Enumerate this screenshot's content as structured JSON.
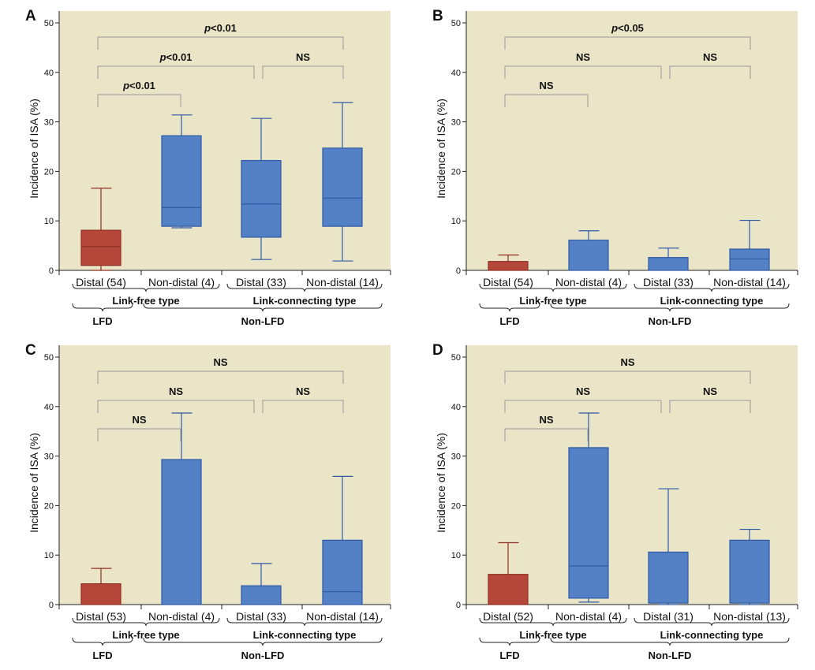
{
  "chart_data": [
    {
      "type": "box",
      "panel": "A",
      "ylabel": "Incidence of ISA (%)",
      "ylim": [
        0,
        50
      ],
      "yticks": [
        0,
        10,
        20,
        30,
        40,
        50
      ],
      "categories": [
        "Distal (54)",
        "Non-distal (4)",
        "Distal (33)",
        "Non-distal (14)"
      ],
      "boxes": [
        {
          "whisker_low": 0,
          "q1": 1.0,
          "median": 4.8,
          "q3": 8.1,
          "whisker_high": 16.6,
          "color": "#b5473a"
        },
        {
          "whisker_low": 8.6,
          "q1": 8.9,
          "median": 12.7,
          "q3": 27.2,
          "whisker_high": 31.4,
          "color": "#5480c6"
        },
        {
          "whisker_low": 2.2,
          "q1": 6.7,
          "median": 13.4,
          "q3": 22.2,
          "whisker_high": 30.7,
          "color": "#5480c6"
        },
        {
          "whisker_low": 1.9,
          "q1": 8.9,
          "median": 14.6,
          "q3": 24.7,
          "whisker_high": 33.9,
          "color": "#5480c6"
        }
      ],
      "group1": {
        "left": "Link-free type",
        "right": "Link-connecting type"
      },
      "group2": {
        "left": "LFD",
        "right": "Non-LFD"
      },
      "comparisons": [
        {
          "from": 0,
          "to": 3,
          "label_prefix": "p",
          "label_rest": "<0.01"
        },
        {
          "from": 0,
          "to": 2,
          "label_prefix": "p",
          "label_rest": "<0.01"
        },
        {
          "from": 2,
          "to": 3,
          "label_prefix": "",
          "label_rest": "NS"
        },
        {
          "from": 0,
          "to": 1,
          "label_prefix": "p",
          "label_rest": "<0.01"
        }
      ]
    },
    {
      "type": "box",
      "panel": "B",
      "ylabel": "Incidence of ISA (%)",
      "ylim": [
        0,
        50
      ],
      "yticks": [
        0,
        10,
        20,
        30,
        40,
        50
      ],
      "categories": [
        "Distal (54)",
        "Non-distal (4)",
        "Distal (33)",
        "Non-distal (14)"
      ],
      "boxes": [
        {
          "whisker_low": 0,
          "q1": 0,
          "median": 0,
          "q3": 1.8,
          "whisker_high": 3.1,
          "color": "#b5473a"
        },
        {
          "whisker_low": 0,
          "q1": 0,
          "median": 0,
          "q3": 6.1,
          "whisker_high": 8.0,
          "color": "#5480c6"
        },
        {
          "whisker_low": 0,
          "q1": 0,
          "median": 0,
          "q3": 2.6,
          "whisker_high": 4.5,
          "color": "#5480c6"
        },
        {
          "whisker_low": 0,
          "q1": 0,
          "median": 2.3,
          "q3": 4.3,
          "whisker_high": 10.1,
          "color": "#5480c6"
        }
      ],
      "group1": {
        "left": "Link-free type",
        "right": "Link-connecting type"
      },
      "group2": {
        "left": "LFD",
        "right": "Non-LFD"
      },
      "comparisons": [
        {
          "from": 0,
          "to": 3,
          "label_prefix": "p",
          "label_rest": "<0.05"
        },
        {
          "from": 0,
          "to": 2,
          "label_prefix": "",
          "label_rest": "NS"
        },
        {
          "from": 2,
          "to": 3,
          "label_prefix": "",
          "label_rest": "NS"
        },
        {
          "from": 0,
          "to": 1,
          "label_prefix": "",
          "label_rest": "NS"
        }
      ]
    },
    {
      "type": "box",
      "panel": "C",
      "ylabel": "Incidence of ISA (%)",
      "ylim": [
        0,
        50
      ],
      "yticks": [
        0,
        10,
        20,
        30,
        40,
        50
      ],
      "categories": [
        "Distal (53)",
        "Non-distal (4)",
        "Distal (33)",
        "Non-distal (14)"
      ],
      "boxes": [
        {
          "whisker_low": 0,
          "q1": 0,
          "median": 0,
          "q3": 4.2,
          "whisker_high": 7.3,
          "color": "#b5473a"
        },
        {
          "whisker_low": 0,
          "q1": 0,
          "median": 0,
          "q3": 29.3,
          "whisker_high": 38.7,
          "color": "#5480c6"
        },
        {
          "whisker_low": 0,
          "q1": 0,
          "median": 0,
          "q3": 3.8,
          "whisker_high": 8.3,
          "color": "#5480c6"
        },
        {
          "whisker_low": 0,
          "q1": 0,
          "median": 2.6,
          "q3": 13.0,
          "whisker_high": 25.9,
          "color": "#5480c6"
        }
      ],
      "group1": {
        "left": "Link-free type",
        "right": "Link-connecting type"
      },
      "group2": {
        "left": "LFD",
        "right": "Non-LFD"
      },
      "comparisons": [
        {
          "from": 0,
          "to": 3,
          "label_prefix": "",
          "label_rest": "NS"
        },
        {
          "from": 0,
          "to": 2,
          "label_prefix": "",
          "label_rest": "NS"
        },
        {
          "from": 2,
          "to": 3,
          "label_prefix": "",
          "label_rest": "NS"
        },
        {
          "from": 0,
          "to": 1,
          "label_prefix": "",
          "label_rest": "NS"
        }
      ]
    },
    {
      "type": "box",
      "panel": "D",
      "ylabel": "Incidence of ISA (%)",
      "ylim": [
        0,
        50
      ],
      "yticks": [
        0,
        10,
        20,
        30,
        40,
        50
      ],
      "categories": [
        "Distal (52)",
        "Non-distal (4)",
        "Distal (31)",
        "Non-distal (13)"
      ],
      "boxes": [
        {
          "whisker_low": 0,
          "q1": 0,
          "median": 0,
          "q3": 6.1,
          "whisker_high": 12.5,
          "color": "#b5473a"
        },
        {
          "whisker_low": 0.5,
          "q1": 1.3,
          "median": 7.8,
          "q3": 31.7,
          "whisker_high": 38.7,
          "color": "#5480c6"
        },
        {
          "whisker_low": 0,
          "q1": 0.3,
          "median": 0.3,
          "q3": 10.6,
          "whisker_high": 23.4,
          "color": "#5480c6"
        },
        {
          "whisker_low": 0,
          "q1": 0.3,
          "median": 0.3,
          "q3": 13.0,
          "whisker_high": 15.2,
          "color": "#5480c6"
        }
      ],
      "group1": {
        "left": "Link-free type",
        "right": "Link-connecting type"
      },
      "group2": {
        "left": "LFD",
        "right": "Non-LFD"
      },
      "comparisons": [
        {
          "from": 0,
          "to": 3,
          "label_prefix": "",
          "label_rest": "NS"
        },
        {
          "from": 0,
          "to": 2,
          "label_prefix": "",
          "label_rest": "NS"
        },
        {
          "from": 2,
          "to": 3,
          "label_prefix": "",
          "label_rest": "NS"
        },
        {
          "from": 0,
          "to": 1,
          "label_prefix": "",
          "label_rest": "NS"
        }
      ]
    }
  ],
  "colors": {
    "plot_background": "#ebe5c8",
    "lfd_box": "#b5473a",
    "nonlfd_box": "#5480c6",
    "bracket": "#999999"
  }
}
